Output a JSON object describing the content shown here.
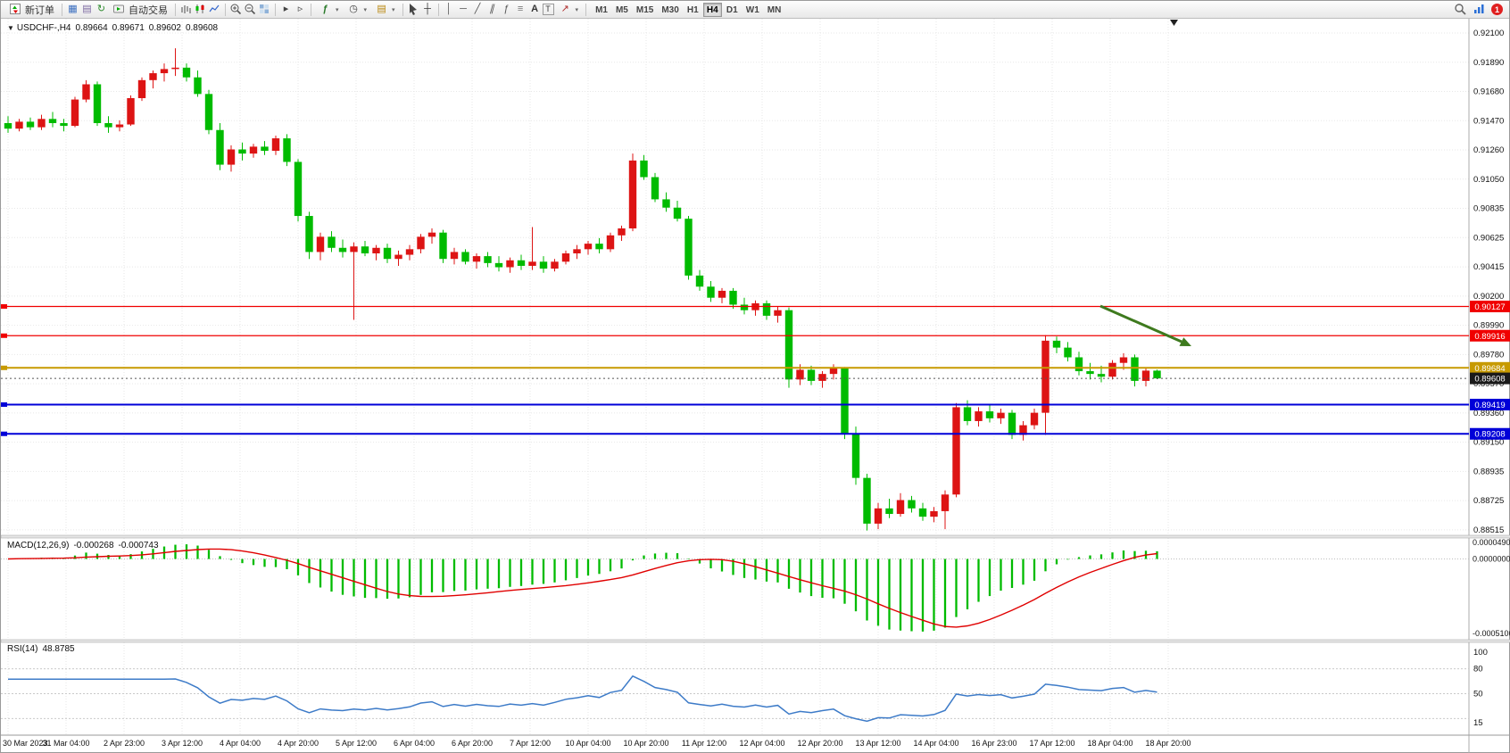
{
  "toolbar": {
    "new_order_label": "新订单",
    "autotrading_label": "自动交易",
    "timeframes": [
      "M1",
      "M5",
      "M15",
      "M30",
      "H1",
      "H4",
      "D1",
      "W1",
      "MN"
    ],
    "active_timeframe": "H4",
    "notification_count": "1",
    "icon_names": [
      "new-order-icon",
      "chart-window-icon",
      "profiles-icon",
      "refresh-icon",
      "autotrading-icon",
      "bar-chart-icon",
      "candlestick-icon",
      "line-chart-icon",
      "zoom-in-icon",
      "zoom-out-icon",
      "tile-windows-icon",
      "auto-scroll-icon",
      "chart-shift-icon",
      "indicators-icon",
      "periods-icon",
      "templates-icon",
      "cursor-icon",
      "crosshair-icon",
      "vertical-line-icon",
      "horizontal-line-icon",
      "trendline-icon",
      "channel-icon",
      "fibonacci-icon",
      "grid-icon",
      "text-icon",
      "label-icon",
      "arrows-icon",
      "search-icon",
      "signal-icon",
      "notification-badge"
    ]
  },
  "chart": {
    "symbol_period": "USDCHF-,H4",
    "ohlc": {
      "open": "0.89664",
      "high": "0.89671",
      "low": "0.89602",
      "close": "0.89608"
    },
    "price_axis": [
      "0.92100",
      "0.91890",
      "0.91680",
      "0.91470",
      "0.91260",
      "0.91050",
      "0.90835",
      "0.90625",
      "0.90415",
      "0.90200",
      "0.89990",
      "0.89780",
      "0.89570",
      "0.89360",
      "0.89150",
      "0.88935",
      "0.88725",
      "0.88515"
    ],
    "time_axis": [
      "30 Mar 2023",
      "31 Mar 04:00",
      "2 Apr 23:00",
      "3 Apr 12:00",
      "4 Apr 04:00",
      "4 Apr 20:00",
      "5 Apr 12:00",
      "6 Apr 04:00",
      "6 Apr 20:00",
      "7 Apr 12:00",
      "10 Apr 04:00",
      "10 Apr 20:00",
      "11 Apr 12:00",
      "12 Apr 04:00",
      "12 Apr 20:00",
      "13 Apr 12:00",
      "14 Apr 04:00",
      "16 Apr 23:00",
      "17 Apr 12:00",
      "18 Apr 04:00",
      "18 Apr 20:00"
    ],
    "levels": [
      {
        "price": "0.90127",
        "value": 0.90127,
        "color": "#F00000",
        "type": "resistance"
      },
      {
        "price": "0.89916",
        "value": 0.89916,
        "color": "#F00000",
        "type": "resistance"
      },
      {
        "price": "0.89684",
        "value": 0.89684,
        "color": "#C79A00",
        "type": "pivot"
      },
      {
        "price": "0.89608",
        "value": 0.89608,
        "color": "#1a1a1a",
        "type": "bid"
      },
      {
        "price": "0.89419",
        "value": 0.89419,
        "color": "#0000D8",
        "type": "support"
      },
      {
        "price": "0.89208",
        "value": 0.89208,
        "color": "#0000D8",
        "type": "support"
      }
    ],
    "colors": {
      "up": "#DD1414",
      "down": "#00BB00",
      "grid": "#E7E7E7",
      "arrow": "#3E7A1E"
    },
    "candles": [
      [
        0.9145,
        0.915,
        0.9138,
        0.9141
      ],
      [
        0.9141,
        0.9148,
        0.9139,
        0.9146
      ],
      [
        0.9146,
        0.9149,
        0.914,
        0.9142
      ],
      [
        0.9142,
        0.9151,
        0.914,
        0.9148
      ],
      [
        0.9148,
        0.9153,
        0.9142,
        0.9145
      ],
      [
        0.9145,
        0.9148,
        0.9139,
        0.9143
      ],
      [
        0.9143,
        0.9164,
        0.9142,
        0.9162
      ],
      [
        0.9162,
        0.9176,
        0.916,
        0.9173
      ],
      [
        0.9173,
        0.9175,
        0.9143,
        0.9145
      ],
      [
        0.9145,
        0.915,
        0.9138,
        0.9142
      ],
      [
        0.9142,
        0.9147,
        0.9139,
        0.9144
      ],
      [
        0.9144,
        0.9165,
        0.9143,
        0.9163
      ],
      [
        0.9163,
        0.9178,
        0.9161,
        0.9176
      ],
      [
        0.9176,
        0.9183,
        0.917,
        0.9181
      ],
      [
        0.9181,
        0.9188,
        0.9175,
        0.9184
      ],
      [
        0.9184,
        0.9199,
        0.9179,
        0.9185
      ],
      [
        0.9185,
        0.9188,
        0.9175,
        0.9178
      ],
      [
        0.9178,
        0.9183,
        0.9164,
        0.9166
      ],
      [
        0.9166,
        0.9169,
        0.9137,
        0.914
      ],
      [
        0.914,
        0.9145,
        0.9111,
        0.9115
      ],
      [
        0.9115,
        0.9129,
        0.911,
        0.9126
      ],
      [
        0.9126,
        0.9131,
        0.9118,
        0.9123
      ],
      [
        0.9123,
        0.913,
        0.912,
        0.9128
      ],
      [
        0.9128,
        0.9132,
        0.9122,
        0.9125
      ],
      [
        0.9125,
        0.9136,
        0.9122,
        0.9134
      ],
      [
        0.9134,
        0.9137,
        0.9114,
        0.9117
      ],
      [
        0.9117,
        0.9119,
        0.9074,
        0.9078
      ],
      [
        0.9078,
        0.9081,
        0.9047,
        0.9052
      ],
      [
        0.9052,
        0.9066,
        0.9046,
        0.9063
      ],
      [
        0.9063,
        0.9067,
        0.9052,
        0.9055
      ],
      [
        0.9055,
        0.9061,
        0.9048,
        0.9052
      ],
      [
        0.9052,
        0.9059,
        0.9003,
        0.9056
      ],
      [
        0.9056,
        0.906,
        0.9049,
        0.9051
      ],
      [
        0.9051,
        0.9057,
        0.9046,
        0.9055
      ],
      [
        0.9055,
        0.9058,
        0.9044,
        0.9047
      ],
      [
        0.9047,
        0.9053,
        0.9042,
        0.905
      ],
      [
        0.905,
        0.9057,
        0.9046,
        0.9054
      ],
      [
        0.9054,
        0.9065,
        0.9051,
        0.9063
      ],
      [
        0.9063,
        0.9069,
        0.9058,
        0.9066
      ],
      [
        0.9066,
        0.9068,
        0.9044,
        0.9047
      ],
      [
        0.9047,
        0.9055,
        0.9043,
        0.9052
      ],
      [
        0.9052,
        0.9054,
        0.9043,
        0.9045
      ],
      [
        0.9045,
        0.9051,
        0.904,
        0.9049
      ],
      [
        0.9049,
        0.9052,
        0.9041,
        0.9044
      ],
      [
        0.9044,
        0.9049,
        0.9038,
        0.9041
      ],
      [
        0.9041,
        0.9048,
        0.9037,
        0.9046
      ],
      [
        0.9046,
        0.905,
        0.9039,
        0.9042
      ],
      [
        0.9042,
        0.907,
        0.9039,
        0.9045
      ],
      [
        0.9045,
        0.9049,
        0.9037,
        0.904
      ],
      [
        0.904,
        0.9047,
        0.9038,
        0.9045
      ],
      [
        0.9045,
        0.9053,
        0.9043,
        0.9051
      ],
      [
        0.9051,
        0.9057,
        0.9047,
        0.9054
      ],
      [
        0.9054,
        0.906,
        0.905,
        0.9058
      ],
      [
        0.9058,
        0.9062,
        0.9051,
        0.9054
      ],
      [
        0.9054,
        0.9066,
        0.9052,
        0.9064
      ],
      [
        0.9064,
        0.9071,
        0.906,
        0.9069
      ],
      [
        0.9069,
        0.9123,
        0.9067,
        0.9118
      ],
      [
        0.9118,
        0.9122,
        0.9104,
        0.9106
      ],
      [
        0.9106,
        0.9109,
        0.9088,
        0.909
      ],
      [
        0.909,
        0.9095,
        0.9081,
        0.9084
      ],
      [
        0.9084,
        0.9089,
        0.9074,
        0.9076
      ],
      [
        0.9076,
        0.9078,
        0.9032,
        0.9035
      ],
      [
        0.9035,
        0.9039,
        0.9024,
        0.9027
      ],
      [
        0.9027,
        0.9031,
        0.9016,
        0.9019
      ],
      [
        0.9019,
        0.9026,
        0.9015,
        0.9024
      ],
      [
        0.9024,
        0.9026,
        0.9011,
        0.9014
      ],
      [
        0.9014,
        0.9019,
        0.9007,
        0.901
      ],
      [
        0.901,
        0.9017,
        0.9006,
        0.9015
      ],
      [
        0.9015,
        0.9017,
        0.9003,
        0.9006
      ],
      [
        0.9006,
        0.9013,
        0.9001,
        0.901
      ],
      [
        0.901,
        0.9012,
        0.8954,
        0.896
      ],
      [
        0.896,
        0.8971,
        0.8956,
        0.8967
      ],
      [
        0.8967,
        0.897,
        0.8956,
        0.8959
      ],
      [
        0.8959,
        0.8966,
        0.8954,
        0.8964
      ],
      [
        0.8964,
        0.8971,
        0.896,
        0.8968
      ],
      [
        0.8968,
        0.8969,
        0.8917,
        0.8921
      ],
      [
        0.8921,
        0.8926,
        0.8884,
        0.8889
      ],
      [
        0.8889,
        0.8892,
        0.8851,
        0.8856
      ],
      [
        0.8856,
        0.8871,
        0.8852,
        0.8867
      ],
      [
        0.8867,
        0.8874,
        0.886,
        0.8863
      ],
      [
        0.8863,
        0.8878,
        0.8861,
        0.8873
      ],
      [
        0.8873,
        0.8876,
        0.8864,
        0.8867
      ],
      [
        0.8867,
        0.8871,
        0.8858,
        0.8861
      ],
      [
        0.8861,
        0.8868,
        0.8857,
        0.8865
      ],
      [
        0.8865,
        0.888,
        0.8852,
        0.8877
      ],
      [
        0.8877,
        0.8943,
        0.8875,
        0.894
      ],
      [
        0.894,
        0.8945,
        0.8927,
        0.893
      ],
      [
        0.893,
        0.894,
        0.8926,
        0.8937
      ],
      [
        0.8937,
        0.8942,
        0.8929,
        0.8932
      ],
      [
        0.8932,
        0.8939,
        0.8928,
        0.8936
      ],
      [
        0.8936,
        0.8938,
        0.8917,
        0.892
      ],
      [
        0.892,
        0.893,
        0.8916,
        0.8927
      ],
      [
        0.8927,
        0.8939,
        0.8924,
        0.8936
      ],
      [
        0.8936,
        0.8992,
        0.892,
        0.8988
      ],
      [
        0.8988,
        0.8991,
        0.8979,
        0.8983
      ],
      [
        0.8983,
        0.8987,
        0.8973,
        0.8976
      ],
      [
        0.8976,
        0.898,
        0.8963,
        0.8966
      ],
      [
        0.8966,
        0.8972,
        0.896,
        0.8964
      ],
      [
        0.8964,
        0.897,
        0.8958,
        0.8962
      ],
      [
        0.8962,
        0.8974,
        0.896,
        0.8972
      ],
      [
        0.8972,
        0.8979,
        0.8967,
        0.8976
      ],
      [
        0.8976,
        0.8978,
        0.8955,
        0.8959
      ],
      [
        0.8959,
        0.8968,
        0.8955,
        0.89664
      ],
      [
        0.89664,
        0.89671,
        0.89602,
        0.89608
      ]
    ]
  },
  "macd": {
    "label": "MACD(12,26,9)",
    "value_main": "-0.000268",
    "value_signal": "-0.000743",
    "axis": [
      "0.0000490",
      "0.0000000",
      "-0.0005106"
    ],
    "params": {
      "fast": 12,
      "slow": 26,
      "signal": 9
    },
    "colors": {
      "histogram": "#00BB00",
      "signal": "#E00000"
    }
  },
  "rsi": {
    "label": "RSI(14)",
    "value": "48.8785",
    "axis": [
      "100",
      "80",
      "50",
      "15"
    ],
    "levels": [
      80,
      50,
      20
    ],
    "period": 14,
    "color": "#3D7BC8"
  }
}
